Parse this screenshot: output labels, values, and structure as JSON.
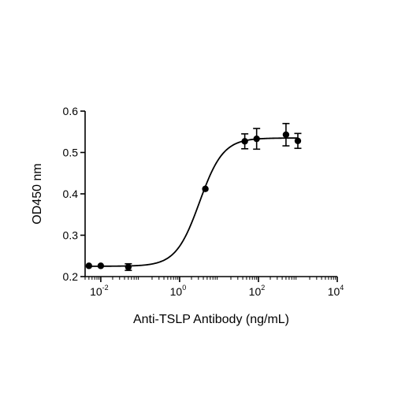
{
  "chart_data": {
    "type": "scatter",
    "title": "",
    "xlabel": "Anti-TSLP Antibody (ng/mL)",
    "ylabel": "OD450 nm",
    "x_scale": "log10",
    "xlim": [
      0.004,
      10000
    ],
    "ylim": [
      0.2,
      0.6
    ],
    "x_ticks": [
      {
        "value": 0.01,
        "base": "10",
        "exp": "-2"
      },
      {
        "value": 1,
        "base": "10",
        "exp": "0"
      },
      {
        "value": 100,
        "base": "10",
        "exp": "2"
      },
      {
        "value": 10000,
        "base": "10",
        "exp": "4"
      }
    ],
    "y_ticks": [
      "0.2",
      "0.3",
      "0.4",
      "0.5",
      "0.6"
    ],
    "grid": false,
    "legend": "none",
    "series": [
      {
        "points": [
          {
            "x": 0.005,
            "y": 0.226,
            "err": 0.003
          },
          {
            "x": 0.01,
            "y": 0.226,
            "err": 0.003
          },
          {
            "x": 0.05,
            "y": 0.223,
            "err": 0.008
          },
          {
            "x": 4.5,
            "y": 0.412,
            "err": 0.003
          },
          {
            "x": 45,
            "y": 0.527,
            "err": 0.018
          },
          {
            "x": 90,
            "y": 0.533,
            "err": 0.025
          },
          {
            "x": 500,
            "y": 0.543,
            "err": 0.027
          },
          {
            "x": 1000,
            "y": 0.528,
            "err": 0.018
          }
        ],
        "fit_curve": {
          "model": "4PL",
          "bottom": 0.225,
          "top": 0.535,
          "ec50": 3.2,
          "hill": 1.45
        },
        "color": "#000000"
      }
    ]
  }
}
